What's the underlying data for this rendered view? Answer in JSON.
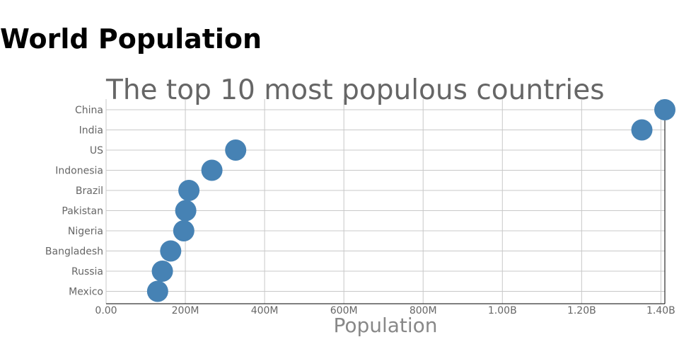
{
  "page": {
    "title": "World Population"
  },
  "chart_data": {
    "type": "scatter",
    "title": "The top 10 most populous countries",
    "xlabel": "Population",
    "ylabel": "",
    "xlim": [
      0,
      1410000000
    ],
    "x_ticks": [
      0,
      200000000,
      400000000,
      600000000,
      800000000,
      1000000000,
      1200000000,
      1400000000
    ],
    "x_tick_labels": [
      "0.00",
      "200M",
      "400M",
      "600M",
      "800M",
      "1.00B",
      "1.20B",
      "1.40B"
    ],
    "grid": true,
    "marker_color": "#4682b4",
    "categories": [
      "China",
      "India",
      "US",
      "Indonesia",
      "Brazil",
      "Pakistan",
      "Nigeria",
      "Bangladesh",
      "Russia",
      "Mexico"
    ],
    "values": [
      1410000000,
      1352000000,
      327000000,
      267000000,
      209000000,
      201000000,
      196000000,
      163000000,
      142000000,
      130000000
    ]
  }
}
